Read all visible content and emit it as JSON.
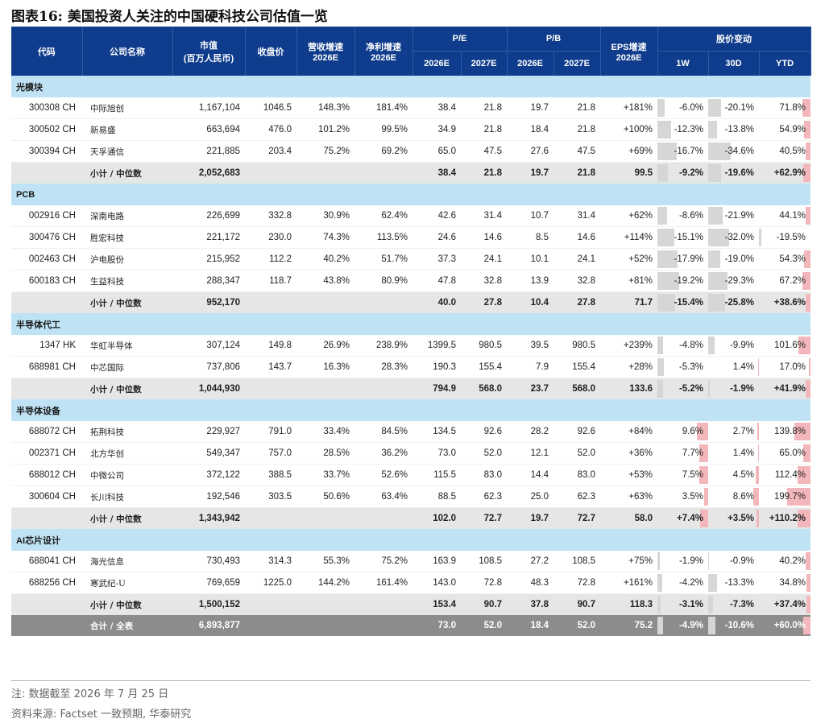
{
  "title": "图表16:  美国投资人关注的中国硬科技公司估值一览",
  "headers": {
    "code": "代码",
    "name": "公司名称",
    "mcap": "市值",
    "mcap_unit": "(百万人民币)",
    "close": "收盘价",
    "rev": "营收增速",
    "rev_year": "2026E",
    "np": "净利增速",
    "np_year": "2026E",
    "pe": "P/E",
    "pb": "P/B",
    "eps": "EPS增速",
    "eps_year": "2026E",
    "chg": "股价变动",
    "y26": "2026E",
    "y27": "2027E",
    "w1": "1W",
    "d30": "30D",
    "ytd": "YTD"
  },
  "sections": [
    {
      "category": "光模块",
      "rows": [
        {
          "code": "300308 CH",
          "name": "中际旭创",
          "mcap": "1,167,104",
          "close": "1046.5",
          "rev": "148.3%",
          "np": "181.4%",
          "pe26": "38.4",
          "pe27": "21.8",
          "pb26": "19.7",
          "pb27": "21.8",
          "eps": "+181%",
          "w1": "-6.0%",
          "d30": "-20.1%",
          "ytd": "71.8%",
          "w1v": -6.0,
          "d30v": -20.1,
          "ytdv": 71.8
        },
        {
          "code": "300502 CH",
          "name": "新易盛",
          "mcap": "663,694",
          "close": "476.0",
          "rev": "101.2%",
          "np": "99.5%",
          "pe26": "34.9",
          "pe27": "21.8",
          "pb26": "18.4",
          "pb27": "21.8",
          "eps": "+100%",
          "w1": "-12.3%",
          "d30": "-13.8%",
          "ytd": "54.9%",
          "w1v": -12.3,
          "d30v": -13.8,
          "ytdv": 54.9
        },
        {
          "code": "300394 CH",
          "name": "天孚通信",
          "mcap": "221,885",
          "close": "203.4",
          "rev": "75.2%",
          "np": "69.2%",
          "pe26": "65.0",
          "pe27": "47.5",
          "pb26": "27.6",
          "pb27": "47.5",
          "eps": "+69%",
          "w1": "-16.7%",
          "d30": "-34.6%",
          "ytd": "40.5%",
          "w1v": -16.7,
          "d30v": -34.6,
          "ytdv": 40.5
        }
      ],
      "subtotal": {
        "name": "小计 / 中位数",
        "mcap": "2,052,683",
        "pe26": "38.4",
        "pe27": "21.8",
        "pb26": "19.7",
        "pb27": "21.8",
        "eps": "99.5",
        "w1": "-9.2%",
        "d30": "-19.6%",
        "ytd": "+62.9%",
        "w1v": -9.2,
        "d30v": -19.6,
        "ytdv": 62.9
      }
    },
    {
      "category": "PCB",
      "rows": [
        {
          "code": "002916 CH",
          "name": "深南电路",
          "mcap": "226,699",
          "close": "332.8",
          "rev": "30.9%",
          "np": "62.4%",
          "pe26": "42.6",
          "pe27": "31.4",
          "pb26": "10.7",
          "pb27": "31.4",
          "eps": "+62%",
          "w1": "-8.6%",
          "d30": "-21.9%",
          "ytd": "44.1%",
          "w1v": -8.6,
          "d30v": -21.9,
          "ytdv": 44.1
        },
        {
          "code": "300476 CH",
          "name": "胜宏科技",
          "mcap": "221,172",
          "close": "230.0",
          "rev": "74.3%",
          "np": "113.5%",
          "pe26": "24.6",
          "pe27": "14.6",
          "pb26": "8.5",
          "pb27": "14.6",
          "eps": "+114%",
          "w1": "-15.1%",
          "d30": "-32.0%",
          "ytd": "-19.5%",
          "w1v": -15.1,
          "d30v": -32.0,
          "ytdv": -19.5
        },
        {
          "code": "002463 CH",
          "name": "沪电股份",
          "mcap": "215,952",
          "close": "112.2",
          "rev": "40.2%",
          "np": "51.7%",
          "pe26": "37.3",
          "pe27": "24.1",
          "pb26": "10.1",
          "pb27": "24.1",
          "eps": "+52%",
          "w1": "-17.9%",
          "d30": "-19.0%",
          "ytd": "54.3%",
          "w1v": -17.9,
          "d30v": -19.0,
          "ytdv": 54.3
        },
        {
          "code": "600183 CH",
          "name": "生益科技",
          "mcap": "288,347",
          "close": "118.7",
          "rev": "43.8%",
          "np": "80.9%",
          "pe26": "47.8",
          "pe27": "32.8",
          "pb26": "13.9",
          "pb27": "32.8",
          "eps": "+81%",
          "w1": "-19.2%",
          "d30": "-29.3%",
          "ytd": "67.2%",
          "w1v": -19.2,
          "d30v": -29.3,
          "ytdv": 67.2
        }
      ],
      "subtotal": {
        "name": "小计 / 中位数",
        "mcap": "952,170",
        "pe26": "40.0",
        "pe27": "27.8",
        "pb26": "10.4",
        "pb27": "27.8",
        "eps": "71.7",
        "w1": "-15.4%",
        "d30": "-25.8%",
        "ytd": "+38.6%",
        "w1v": -15.4,
        "d30v": -25.8,
        "ytdv": 38.6
      }
    },
    {
      "category": "半导体代工",
      "rows": [
        {
          "code": "1347 HK",
          "name": "华虹半导体",
          "mcap": "307,124",
          "close": "149.8",
          "rev": "26.9%",
          "np": "238.9%",
          "pe26": "1399.5",
          "pe27": "980.5",
          "pb26": "39.5",
          "pb27": "980.5",
          "eps": "+239%",
          "w1": "-4.8%",
          "d30": "-9.9%",
          "ytd": "101.6%",
          "w1v": -4.8,
          "d30v": -9.9,
          "ytdv": 101.6
        },
        {
          "code": "688981 CH",
          "name": "中芯国际",
          "mcap": "737,806",
          "close": "143.7",
          "rev": "16.3%",
          "np": "28.3%",
          "pe26": "190.3",
          "pe27": "155.4",
          "pb26": "7.9",
          "pb27": "155.4",
          "eps": "+28%",
          "w1": "-5.3%",
          "d30": "1.4%",
          "ytd": "17.0%",
          "w1v": -5.3,
          "d30v": 1.4,
          "ytdv": 17.0
        }
      ],
      "subtotal": {
        "name": "小计 / 中位数",
        "mcap": "1,044,930",
        "pe26": "794.9",
        "pe27": "568.0",
        "pb26": "23.7",
        "pb27": "568.0",
        "eps": "133.6",
        "w1": "-5.2%",
        "d30": "-1.9%",
        "ytd": "+41.9%",
        "w1v": -5.2,
        "d30v": -1.9,
        "ytdv": 41.9
      }
    },
    {
      "category": "半导体设备",
      "rows": [
        {
          "code": "688072 CH",
          "name": "拓荆科技",
          "mcap": "229,927",
          "close": "791.0",
          "rev": "33.4%",
          "np": "84.5%",
          "pe26": "134.5",
          "pe27": "92.6",
          "pb26": "28.2",
          "pb27": "92.6",
          "eps": "+84%",
          "w1": "9.6%",
          "d30": "2.7%",
          "ytd": "139.8%",
          "w1v": 9.6,
          "d30v": 2.7,
          "ytdv": 139.8
        },
        {
          "code": "002371 CH",
          "name": "北方华创",
          "mcap": "549,347",
          "close": "757.0",
          "rev": "28.5%",
          "np": "36.2%",
          "pe26": "73.0",
          "pe27": "52.0",
          "pb26": "12.1",
          "pb27": "52.0",
          "eps": "+36%",
          "w1": "7.7%",
          "d30": "1.4%",
          "ytd": "65.0%",
          "w1v": 7.7,
          "d30v": 1.4,
          "ytdv": 65.0
        },
        {
          "code": "688012 CH",
          "name": "中微公司",
          "mcap": "372,122",
          "close": "388.5",
          "rev": "33.7%",
          "np": "52.6%",
          "pe26": "115.5",
          "pe27": "83.0",
          "pb26": "14.4",
          "pb27": "83.0",
          "eps": "+53%",
          "w1": "7.5%",
          "d30": "4.5%",
          "ytd": "112.4%",
          "w1v": 7.5,
          "d30v": 4.5,
          "ytdv": 112.4
        },
        {
          "code": "300604 CH",
          "name": "长川科技",
          "mcap": "192,546",
          "close": "303.5",
          "rev": "50.6%",
          "np": "63.4%",
          "pe26": "88.5",
          "pe27": "62.3",
          "pb26": "25.0",
          "pb27": "62.3",
          "eps": "+63%",
          "w1": "3.5%",
          "d30": "8.6%",
          "ytd": "199.7%",
          "w1v": 3.5,
          "d30v": 8.6,
          "ytdv": 199.7
        }
      ],
      "subtotal": {
        "name": "小计 / 中位数",
        "mcap": "1,343,942",
        "pe26": "102.0",
        "pe27": "72.7",
        "pb26": "19.7",
        "pb27": "72.7",
        "eps": "58.0",
        "w1": "+7.4%",
        "d30": "+3.5%",
        "ytd": "+110.2%",
        "w1v": 7.4,
        "d30v": 3.5,
        "ytdv": 110.2
      }
    },
    {
      "category": "AI芯片设计",
      "rows": [
        {
          "code": "688041 CH",
          "name": "海光信息",
          "mcap": "730,493",
          "close": "314.3",
          "rev": "55.3%",
          "np": "75.2%",
          "pe26": "163.9",
          "pe27": "108.5",
          "pb26": "27.2",
          "pb27": "108.5",
          "eps": "+75%",
          "w1": "-1.9%",
          "d30": "-0.9%",
          "ytd": "40.2%",
          "w1v": -1.9,
          "d30v": -0.9,
          "ytdv": 40.2
        },
        {
          "code": "688256 CH",
          "name": "寒武纪-U",
          "mcap": "769,659",
          "close": "1225.0",
          "rev": "144.2%",
          "np": "161.4%",
          "pe26": "143.0",
          "pe27": "72.8",
          "pb26": "48.3",
          "pb27": "72.8",
          "eps": "+161%",
          "w1": "-4.2%",
          "d30": "-13.3%",
          "ytd": "34.8%",
          "w1v": -4.2,
          "d30v": -13.3,
          "ytdv": 34.8
        }
      ],
      "subtotal": {
        "name": "小计 / 中位数",
        "mcap": "1,500,152",
        "pe26": "153.4",
        "pe27": "90.7",
        "pb26": "37.8",
        "pb27": "90.7",
        "eps": "118.3",
        "w1": "-3.1%",
        "d30": "-7.3%",
        "ytd": "+37.4%",
        "w1v": -3.1,
        "d30v": -7.3,
        "ytdv": 37.4
      }
    }
  ],
  "total": {
    "name": "合计 / 全表",
    "mcap": "6,893,877",
    "pe26": "73.0",
    "pe27": "52.0",
    "pb26": "18.4",
    "pb27": "52.0",
    "eps": "75.2",
    "w1": "-4.9%",
    "d30": "-10.6%",
    "ytd": "+60.0%",
    "w1v": -4.9,
    "d30v": -10.6,
    "ytdv": 60.0
  },
  "notes": {
    "note": "注: 数据截至 2026 年 7 月 25 日",
    "source": "资料来源: Factset 一致预期, 华泰研究"
  },
  "colors": {
    "header": "#0f3c8c",
    "category": "#bfe3f5",
    "subtotal": "#e6e6e6",
    "total": "#8c8c8c",
    "pos_bar": "#f3b6bb",
    "neg_bar": "#d6d6d6"
  }
}
